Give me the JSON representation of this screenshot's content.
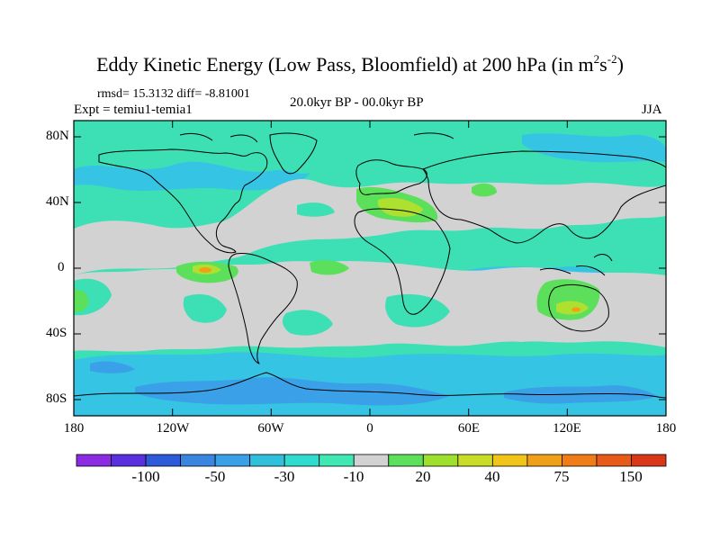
{
  "title_main": "Eddy Kinetic Energy (Low Pass, Bloomfield) at 200 hPa (in m",
  "title_exp1": "2",
  "title_mid": "s",
  "title_exp2": "-2",
  "title_end": ")",
  "stats_line": "rmsd= 15.3132 diff= -8.81001",
  "expt_label": "Expt = temiu1-temia1",
  "period_label": "20.0kyr BP - 00.0kyr BP",
  "season_label": "JJA",
  "y_ticks": [
    "80N",
    "40N",
    "0",
    "40S",
    "80S"
  ],
  "x_ticks": [
    "180",
    "120W",
    "60W",
    "0",
    "60E",
    "120E",
    "180"
  ],
  "colorbar": {
    "colors": [
      "#8b2be2",
      "#5a2fe0",
      "#2c5ad8",
      "#3a85e0",
      "#3aa0e8",
      "#30c0dc",
      "#30dcd0",
      "#40e8b4",
      "#d2d2d2",
      "#5ce05c",
      "#9ee02c",
      "#c8dc28",
      "#f0c418",
      "#f0a018",
      "#f07c18",
      "#e85a18",
      "#d83818"
    ],
    "labels": [
      "-100",
      "-50",
      "-30",
      "-10",
      "20",
      "40",
      "75",
      "150"
    ]
  },
  "colors": {
    "ocean_teal": "#3ce0b4",
    "light_blue": "#36c4e4",
    "mid_blue": "#3aa0e8",
    "neutral_grey": "#d2d2d2",
    "green": "#5ce05c",
    "yellow_green": "#aee030",
    "orange": "#f0a018"
  }
}
